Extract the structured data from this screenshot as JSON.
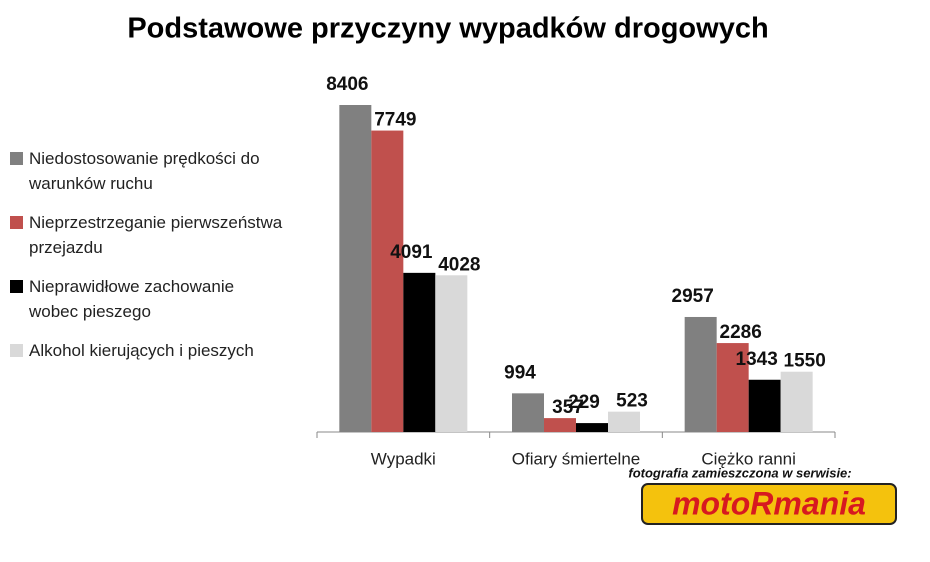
{
  "chart_data": {
    "type": "bar",
    "title": "Podstawowe przyczyny wypadków drogowych",
    "categories": [
      "Wypadki",
      "Ofiary śmiertelne",
      "Ciężko ranni"
    ],
    "series": [
      {
        "name": "Niedostosowanie prędkości do warunków ruchu",
        "color": "#808080",
        "values": [
          8406,
          994,
          2957
        ]
      },
      {
        "name": "Nieprzestrzeganie pierwszeństwa przejazdu",
        "color": "#c0504d",
        "values": [
          7749,
          357,
          2286
        ]
      },
      {
        "name": "Nieprawidłowe zachowanie wobec pieszego",
        "color": "#000000",
        "values": [
          4091,
          229,
          1343
        ]
      },
      {
        "name": "Alkohol kierujących i pieszych",
        "color": "#d9d9d9",
        "values": [
          4028,
          523,
          1550
        ]
      }
    ],
    "legend": "left",
    "data_labels": true
  },
  "watermark": {
    "caption": "fotografia zamieszczona w serwisie:",
    "logo": "motoRmania"
  }
}
